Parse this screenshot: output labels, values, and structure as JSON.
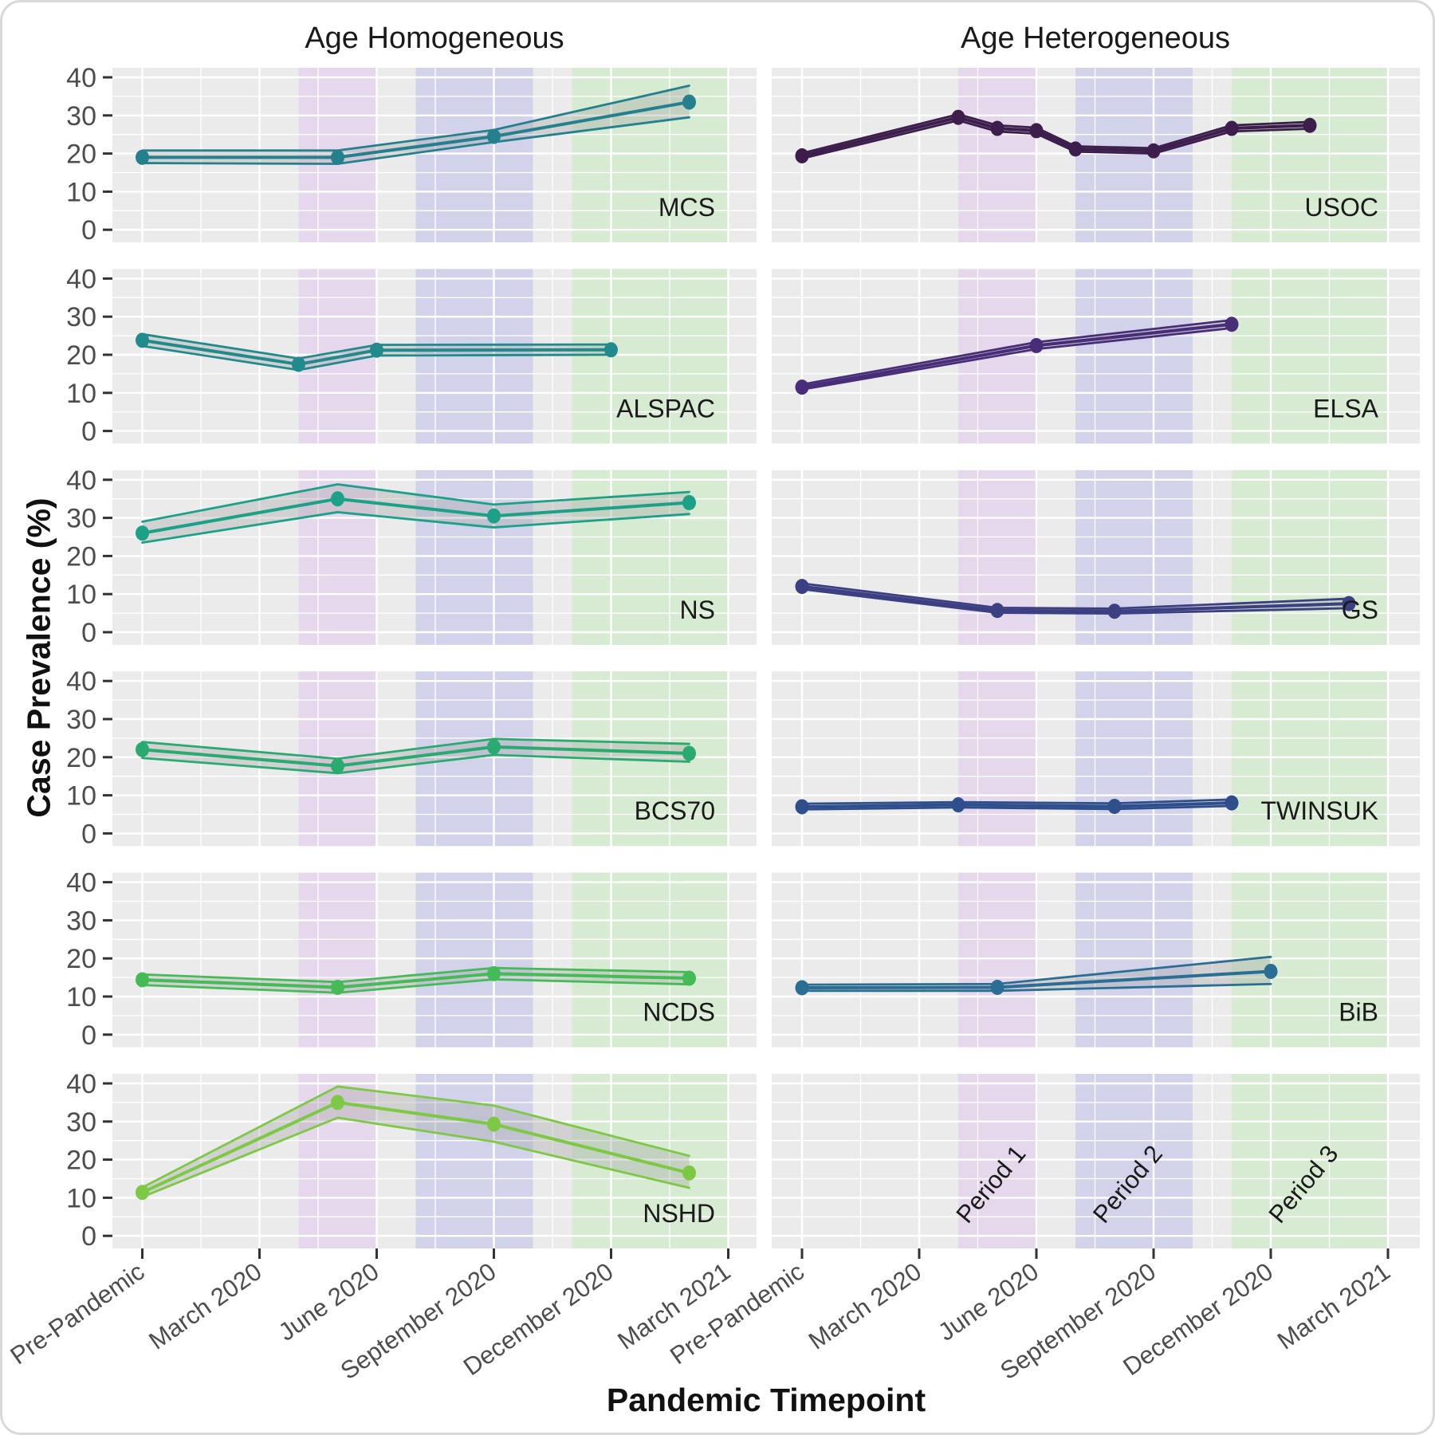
{
  "chart_data": {
    "type": "line",
    "title": "",
    "facets": {
      "columns": [
        "Age Homogeneous",
        "Age Heterogeneous"
      ]
    },
    "x_axis": {
      "label": "Pandemic Timepoint",
      "tick_labels": [
        "Pre-Pandemic",
        "March 2020",
        "June 2020",
        "September 2020",
        "December 2020",
        "March 2021"
      ],
      "tick_months": [
        0,
        3,
        6,
        9,
        12,
        15
      ],
      "minor_tick_months": [
        1.5,
        4.5,
        7.5,
        10.5,
        13.5
      ],
      "range_months": [
        0,
        15
      ]
    },
    "y_axis": {
      "label": "Case Prevalence (%)",
      "ticks": [
        0,
        10,
        20,
        30,
        40
      ],
      "minor_ticks": [
        5,
        15,
        25,
        35
      ],
      "range": [
        0,
        40
      ]
    },
    "periods": [
      {
        "label": "Period 1",
        "from_month": 4,
        "to_month": 6,
        "color": "#e6d8ec"
      },
      {
        "label": "Period 2",
        "from_month": 7,
        "to_month": 10,
        "color": "#d2d3eb"
      },
      {
        "label": "Period 3",
        "from_month": 11,
        "to_month": 15,
        "color": "#d6ebd1"
      }
    ],
    "style": {
      "panel_background": "#ebebeb",
      "grid_color": "#ffffff",
      "ribbon_fill": "#9a9a9a",
      "tick_text_color": "#4d4d4d",
      "label_text_color": "#1a1a1a",
      "tick_mark_color": "#333333"
    },
    "panels": [
      {
        "label": "MCS",
        "column": 0,
        "row": 0,
        "color": "#25808e",
        "points": [
          {
            "m": 0,
            "v": 19.0,
            "lo": 17.5,
            "hi": 20.8
          },
          {
            "m": 5,
            "v": 19.0,
            "lo": 17.3,
            "hi": 20.8
          },
          {
            "m": 9,
            "v": 24.5,
            "lo": 23.0,
            "hi": 26.2
          },
          {
            "m": 14,
            "v": 33.5,
            "lo": 29.5,
            "hi": 37.8
          }
        ]
      },
      {
        "label": "ALSPAC",
        "column": 0,
        "row": 1,
        "color": "#218a8c",
        "points": [
          {
            "m": 0,
            "v": 23.8,
            "lo": 22.3,
            "hi": 25.4
          },
          {
            "m": 4,
            "v": 17.5,
            "lo": 16.0,
            "hi": 19.0
          },
          {
            "m": 6,
            "v": 21.2,
            "lo": 19.8,
            "hi": 22.6
          },
          {
            "m": 12,
            "v": 21.3,
            "lo": 20.0,
            "hi": 22.7
          }
        ]
      },
      {
        "label": "NS",
        "column": 0,
        "row": 2,
        "color": "#1ca188",
        "points": [
          {
            "m": 0,
            "v": 26.0,
            "lo": 23.5,
            "hi": 29.0
          },
          {
            "m": 5,
            "v": 35.0,
            "lo": 31.5,
            "hi": 38.8
          },
          {
            "m": 9,
            "v": 30.5,
            "lo": 27.5,
            "hi": 33.5
          },
          {
            "m": 14,
            "v": 34.0,
            "lo": 31.0,
            "hi": 36.8
          }
        ]
      },
      {
        "label": "BCS70",
        "column": 0,
        "row": 3,
        "color": "#2aaa70",
        "points": [
          {
            "m": 0,
            "v": 22.0,
            "lo": 19.8,
            "hi": 24.0
          },
          {
            "m": 5,
            "v": 17.7,
            "lo": 15.8,
            "hi": 19.6
          },
          {
            "m": 9,
            "v": 22.7,
            "lo": 20.6,
            "hi": 24.8
          },
          {
            "m": 14,
            "v": 21.0,
            "lo": 18.8,
            "hi": 23.5
          }
        ]
      },
      {
        "label": "NCDS",
        "column": 0,
        "row": 4,
        "color": "#44bb57",
        "points": [
          {
            "m": 0,
            "v": 14.4,
            "lo": 13.0,
            "hi": 15.8
          },
          {
            "m": 5,
            "v": 12.4,
            "lo": 11.0,
            "hi": 13.8
          },
          {
            "m": 9,
            "v": 16.0,
            "lo": 14.5,
            "hi": 17.5
          },
          {
            "m": 14,
            "v": 14.8,
            "lo": 13.2,
            "hi": 16.4
          }
        ]
      },
      {
        "label": "NSHD",
        "column": 0,
        "row": 5,
        "color": "#7dc844",
        "points": [
          {
            "m": 0,
            "v": 11.4,
            "lo": 10.2,
            "hi": 12.7
          },
          {
            "m": 5,
            "v": 35.0,
            "lo": 31.0,
            "hi": 39.2
          },
          {
            "m": 9,
            "v": 29.3,
            "lo": 24.7,
            "hi": 34.2
          },
          {
            "m": 14,
            "v": 16.5,
            "lo": 12.6,
            "hi": 21.0
          }
        ]
      },
      {
        "label": "USOC",
        "column": 1,
        "row": 0,
        "color": "#3c1d4c",
        "points": [
          {
            "m": 0,
            "v": 19.4,
            "lo": 18.7,
            "hi": 20.1
          },
          {
            "m": 4,
            "v": 29.5,
            "lo": 28.7,
            "hi": 30.3
          },
          {
            "m": 5,
            "v": 26.6,
            "lo": 25.8,
            "hi": 27.4
          },
          {
            "m": 6,
            "v": 26.0,
            "lo": 25.2,
            "hi": 26.8
          },
          {
            "m": 7,
            "v": 21.2,
            "lo": 20.5,
            "hi": 21.9
          },
          {
            "m": 9,
            "v": 20.7,
            "lo": 20.0,
            "hi": 21.4
          },
          {
            "m": 11,
            "v": 26.6,
            "lo": 25.8,
            "hi": 27.4
          },
          {
            "m": 13,
            "v": 27.4,
            "lo": 26.5,
            "hi": 28.3
          }
        ]
      },
      {
        "label": "ELSA",
        "column": 1,
        "row": 1,
        "color": "#482d79",
        "points": [
          {
            "m": 0,
            "v": 11.5,
            "lo": 10.9,
            "hi": 12.2
          },
          {
            "m": 6,
            "v": 22.4,
            "lo": 21.5,
            "hi": 23.3
          },
          {
            "m": 11,
            "v": 28.0,
            "lo": 27.0,
            "hi": 29.1
          }
        ]
      },
      {
        "label": "GS",
        "column": 1,
        "row": 2,
        "color": "#3c3f82",
        "points": [
          {
            "m": 0,
            "v": 12.0,
            "lo": 11.3,
            "hi": 12.8
          },
          {
            "m": 5,
            "v": 5.7,
            "lo": 5.1,
            "hi": 6.4
          },
          {
            "m": 8,
            "v": 5.5,
            "lo": 4.9,
            "hi": 6.2
          },
          {
            "m": 14,
            "v": 7.5,
            "lo": 6.3,
            "hi": 8.8
          }
        ]
      },
      {
        "label": "TWINSUK",
        "column": 1,
        "row": 3,
        "color": "#2f4f8c",
        "points": [
          {
            "m": 0,
            "v": 7.0,
            "lo": 6.3,
            "hi": 7.8
          },
          {
            "m": 4,
            "v": 7.5,
            "lo": 6.8,
            "hi": 8.2
          },
          {
            "m": 8,
            "v": 7.1,
            "lo": 6.4,
            "hi": 7.9
          },
          {
            "m": 11,
            "v": 8.0,
            "lo": 7.2,
            "hi": 8.9
          }
        ]
      },
      {
        "label": "BiB",
        "column": 1,
        "row": 4,
        "color": "#2b6e93",
        "points": [
          {
            "m": 0,
            "v": 12.3,
            "lo": 11.5,
            "hi": 13.1
          },
          {
            "m": 5,
            "v": 12.4,
            "lo": 11.5,
            "hi": 13.3
          },
          {
            "m": 12,
            "v": 16.6,
            "lo": 13.3,
            "hi": 20.4
          }
        ]
      }
    ]
  }
}
